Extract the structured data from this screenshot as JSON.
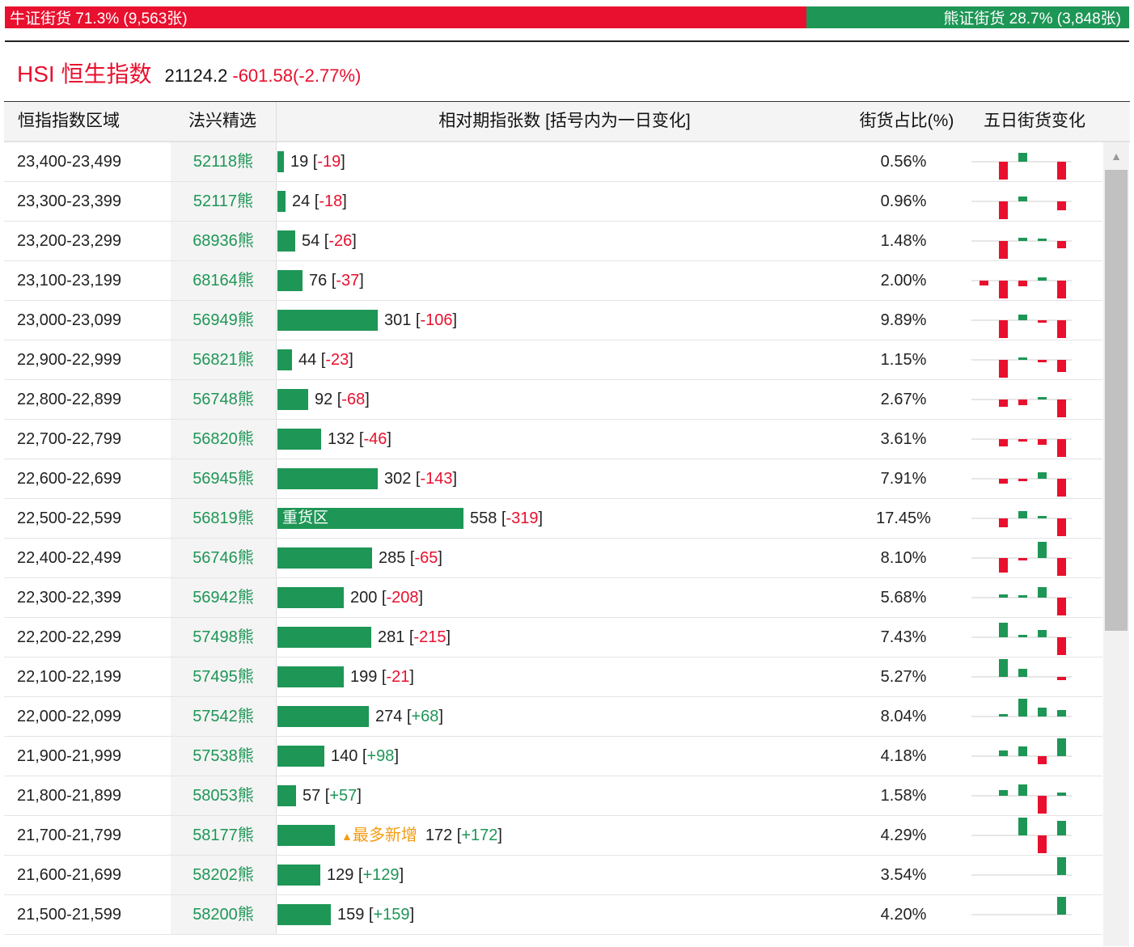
{
  "header": {
    "bull_label": "牛证街货 71.3% (9,563张)",
    "bear_label": "熊证街货 28.7% (3,848张)",
    "bull_share": 0.713,
    "bear_share": 0.287,
    "colors": {
      "bull": "#e8102e",
      "bear": "#1e9656"
    }
  },
  "index": {
    "name": "HSI 恒生指数",
    "value": "21124.2",
    "change": "-601.58(-2.77%)"
  },
  "columns": {
    "range": "恒指指数区域",
    "pick": "法兴精选",
    "bar": "相对期指张数 [括号内为一日变化]",
    "pct": "街货占比(%)",
    "five": "五日街货变化"
  },
  "bar_max": 558,
  "rows": [
    {
      "range": "23,400-23,499",
      "pick": "52118熊",
      "count": 19,
      "count_text": "19",
      "delta": "-19",
      "pct": "0.56%",
      "tag": "",
      "five": [
        0,
        -1,
        0.5,
        0,
        -1
      ]
    },
    {
      "range": "23,300-23,399",
      "pick": "52117熊",
      "count": 24,
      "count_text": "24",
      "delta": "-18",
      "pct": "0.96%",
      "tag": "",
      "five": [
        0,
        -1,
        0.25,
        0,
        -0.5
      ]
    },
    {
      "range": "23,200-23,299",
      "pick": "68936熊",
      "count": 54,
      "count_text": "54",
      "delta": "-26",
      "pct": "1.48%",
      "tag": "",
      "five": [
        0,
        -1,
        0.2,
        0.1,
        -0.4
      ]
    },
    {
      "range": "23,100-23,199",
      "pick": "68164熊",
      "count": 76,
      "count_text": "76",
      "delta": "-37",
      "pct": "2.00%",
      "tag": "",
      "five": [
        -0.25,
        -1,
        -0.3,
        0.2,
        -1
      ]
    },
    {
      "range": "23,000-23,099",
      "pick": "56949熊",
      "count": 301,
      "count_text": "301",
      "delta": "-106",
      "pct": "9.89%",
      "tag": "",
      "five": [
        0,
        -1,
        0.3,
        -0.1,
        -1
      ]
    },
    {
      "range": "22,900-22,999",
      "pick": "56821熊",
      "count": 44,
      "count_text": "44",
      "delta": "-23",
      "pct": "1.15%",
      "tag": "",
      "five": [
        0,
        -1,
        0.15,
        -0.1,
        -0.7
      ]
    },
    {
      "range": "22,800-22,899",
      "pick": "56748熊",
      "count": 92,
      "count_text": "92",
      "delta": "-68",
      "pct": "2.67%",
      "tag": "",
      "five": [
        0,
        -0.4,
        -0.3,
        0.15,
        -1
      ]
    },
    {
      "range": "22,700-22,799",
      "pick": "56820熊",
      "count": 132,
      "count_text": "132",
      "delta": "-46",
      "pct": "3.61%",
      "tag": "",
      "five": [
        0,
        -0.4,
        -0.15,
        -0.3,
        -1
      ]
    },
    {
      "range": "22,600-22,699",
      "pick": "56945熊",
      "count": 302,
      "count_text": "302",
      "delta": "-143",
      "pct": "7.91%",
      "tag": "",
      "five": [
        0,
        -0.25,
        -0.1,
        0.35,
        -1
      ]
    },
    {
      "range": "22,500-22,599",
      "pick": "56819熊",
      "count": 558,
      "count_text": "558",
      "delta": "-319",
      "pct": "17.45%",
      "tag": "重货区",
      "five": [
        0,
        -0.5,
        0.4,
        0.15,
        -1
      ]
    },
    {
      "range": "22,400-22,499",
      "pick": "56746熊",
      "count": 285,
      "count_text": "285",
      "delta": "-65",
      "pct": "8.10%",
      "tag": "",
      "five": [
        0,
        -0.8,
        -0.1,
        0.9,
        -1
      ]
    },
    {
      "range": "22,300-22,399",
      "pick": "56942熊",
      "count": 200,
      "count_text": "200",
      "delta": "-208",
      "pct": "5.68%",
      "tag": "",
      "five": [
        0,
        0.2,
        0.1,
        0.6,
        -1
      ]
    },
    {
      "range": "22,200-22,299",
      "pick": "57498熊",
      "count": 281,
      "count_text": "281",
      "delta": "-215",
      "pct": "7.43%",
      "tag": "",
      "five": [
        0,
        0.8,
        0.1,
        0.4,
        -1
      ]
    },
    {
      "range": "22,100-22,199",
      "pick": "57495熊",
      "count": 199,
      "count_text": "199",
      "delta": "-21",
      "pct": "5.27%",
      "tag": "",
      "five": [
        0,
        1,
        0.45,
        0,
        -0.2
      ]
    },
    {
      "range": "22,000-22,099",
      "pick": "57542熊",
      "count": 274,
      "count_text": "274",
      "delta": "+68",
      "pct": "8.04%",
      "tag": "",
      "five": [
        0,
        0.15,
        1,
        0.5,
        0.35
      ]
    },
    {
      "range": "21,900-21,999",
      "pick": "57538熊",
      "count": 140,
      "count_text": "140",
      "delta": "+98",
      "pct": "4.18%",
      "tag": "",
      "five": [
        0,
        0.3,
        0.55,
        -0.45,
        1
      ]
    },
    {
      "range": "21,800-21,899",
      "pick": "58053熊",
      "count": 57,
      "count_text": "57",
      "delta": "+57",
      "pct": "1.58%",
      "tag": "",
      "five": [
        0,
        0.3,
        0.65,
        -1,
        0.2
      ]
    },
    {
      "range": "21,700-21,799",
      "pick": "58177熊",
      "count": 172,
      "count_text": "172",
      "delta": "+172",
      "pct": "4.29%",
      "tag": "最多新增",
      "five": [
        0,
        0,
        1,
        -1,
        0.8
      ]
    },
    {
      "range": "21,600-21,699",
      "pick": "58202熊",
      "count": 129,
      "count_text": "129",
      "delta": "+129",
      "pct": "3.54%",
      "tag": "",
      "five": [
        0,
        0,
        0,
        0,
        1
      ]
    },
    {
      "range": "21,500-21,599",
      "pick": "58200熊",
      "count": 159,
      "count_text": "159",
      "delta": "+159",
      "pct": "4.20%",
      "tag": "",
      "five": [
        0,
        0,
        0,
        0,
        1
      ]
    }
  ]
}
